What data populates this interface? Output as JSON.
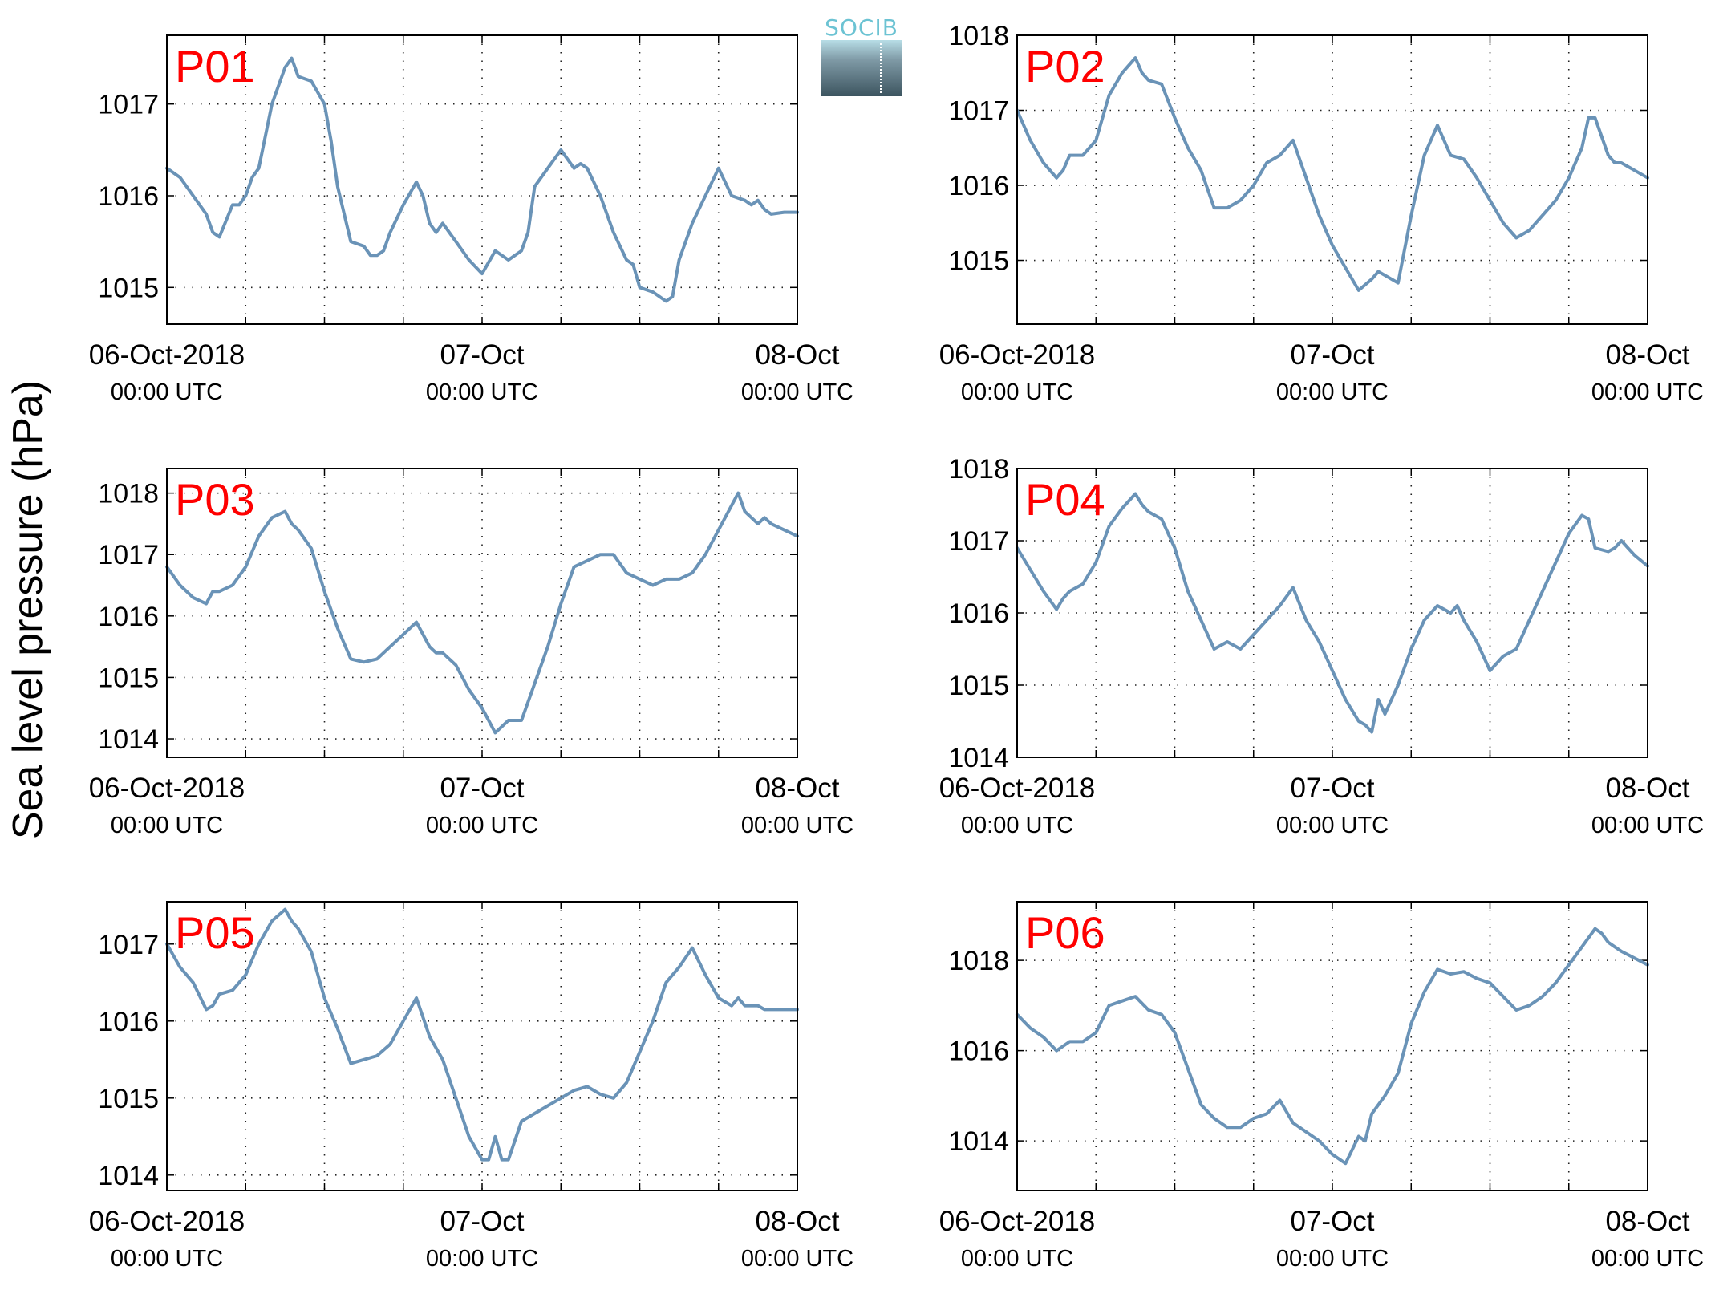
{
  "figure": {
    "ylabel": "Sea level pressure (hPa)",
    "logo": {
      "text": "SOCIB"
    },
    "line_color": "#6a93b7",
    "label_color": "#ff0000"
  },
  "chart_data": [
    {
      "type": "line",
      "name": "P01",
      "x_ticks": [
        "06-Oct-2018",
        "07-Oct",
        "08-Oct"
      ],
      "x_tick_sublabels": [
        "00:00 UTC",
        "00:00 UTC",
        "00:00 UTC"
      ],
      "xlim_hours": [
        0,
        48
      ],
      "ylim": [
        1014.6,
        1017.75
      ],
      "yticks": [
        1015,
        1016,
        1017
      ],
      "grid": true,
      "x_hours": [
        0,
        1,
        2,
        3,
        3.5,
        4,
        5,
        5.5,
        6,
        6.5,
        7,
        8,
        9,
        9.5,
        10,
        11,
        12,
        12.5,
        13,
        14,
        15,
        15.5,
        16,
        16.5,
        17,
        18,
        19,
        19.5,
        20,
        20.5,
        21,
        22,
        23,
        24,
        25,
        26,
        27,
        27.5,
        28,
        29,
        30,
        31,
        31.5,
        32,
        33,
        34,
        35,
        35.5,
        36,
        37,
        38,
        38.5,
        39,
        40,
        41,
        42,
        43,
        44,
        44.5,
        45,
        45.5,
        46,
        47,
        48
      ],
      "values": [
        1016.3,
        1016.2,
        1016.0,
        1015.8,
        1015.6,
        1015.55,
        1015.9,
        1015.9,
        1016.0,
        1016.2,
        1016.3,
        1017.0,
        1017.4,
        1017.5,
        1017.3,
        1017.25,
        1017.0,
        1016.6,
        1016.1,
        1015.5,
        1015.45,
        1015.35,
        1015.35,
        1015.4,
        1015.6,
        1015.9,
        1016.15,
        1016.0,
        1015.7,
        1015.6,
        1015.7,
        1015.5,
        1015.3,
        1015.15,
        1015.4,
        1015.3,
        1015.4,
        1015.6,
        1016.1,
        1016.3,
        1016.5,
        1016.3,
        1016.35,
        1016.3,
        1016.0,
        1015.6,
        1015.3,
        1015.25,
        1015.0,
        1014.95,
        1014.85,
        1014.9,
        1015.3,
        1015.7,
        1016.0,
        1016.3,
        1016.0,
        1015.95,
        1015.9,
        1015.95,
        1015.85,
        1015.8,
        1015.82,
        1015.82
      ]
    },
    {
      "type": "line",
      "name": "P02",
      "x_ticks": [
        "06-Oct-2018",
        "07-Oct",
        "08-Oct"
      ],
      "x_tick_sublabels": [
        "00:00 UTC",
        "00:00 UTC",
        "00:00 UTC"
      ],
      "xlim_hours": [
        0,
        48
      ],
      "ylim": [
        1014.15,
        1018.0
      ],
      "yticks": [
        1015,
        1016,
        1017,
        1018
      ],
      "grid": true,
      "x_hours": [
        0,
        1,
        2,
        3,
        3.5,
        4,
        5,
        6,
        7,
        8,
        9,
        9.5,
        10,
        11,
        12,
        13,
        14,
        15,
        15.5,
        16,
        17,
        18,
        19,
        20,
        21,
        22,
        23,
        24,
        25,
        26,
        27,
        27.5,
        28,
        29,
        30,
        31,
        32,
        33,
        34,
        35,
        36,
        37,
        38,
        39,
        40,
        41,
        42,
        43,
        43.5,
        44,
        45,
        45.5,
        46,
        47,
        48
      ],
      "values": [
        1017.0,
        1016.6,
        1016.3,
        1016.1,
        1016.2,
        1016.4,
        1016.4,
        1016.6,
        1017.2,
        1017.5,
        1017.7,
        1017.5,
        1017.4,
        1017.35,
        1016.9,
        1016.5,
        1016.2,
        1015.7,
        1015.7,
        1015.7,
        1015.8,
        1016.0,
        1016.3,
        1016.4,
        1016.6,
        1016.1,
        1015.6,
        1015.2,
        1014.9,
        1014.6,
        1014.75,
        1014.85,
        1014.8,
        1014.7,
        1015.6,
        1016.4,
        1016.8,
        1016.4,
        1016.35,
        1016.1,
        1015.8,
        1015.5,
        1015.3,
        1015.4,
        1015.6,
        1015.8,
        1016.1,
        1016.5,
        1016.9,
        1016.9,
        1016.4,
        1016.3,
        1016.3,
        1016.2,
        1016.1
      ]
    },
    {
      "type": "line",
      "name": "P03",
      "x_ticks": [
        "06-Oct-2018",
        "07-Oct",
        "08-Oct"
      ],
      "x_tick_sublabels": [
        "00:00 UTC",
        "00:00 UTC",
        "00:00 UTC"
      ],
      "xlim_hours": [
        0,
        48
      ],
      "ylim": [
        1013.7,
        1018.4
      ],
      "yticks": [
        1014,
        1015,
        1016,
        1017,
        1018
      ],
      "grid": true,
      "x_hours": [
        0,
        1,
        2,
        3,
        3.5,
        4,
        5,
        6,
        7,
        8,
        9,
        9.5,
        10,
        11,
        12,
        13,
        14,
        15,
        16,
        17,
        18,
        19,
        20,
        20.5,
        21,
        22,
        23,
        24,
        25,
        26,
        27,
        28,
        29,
        30,
        31,
        32,
        33,
        34,
        35,
        36,
        37,
        38,
        39,
        40,
        41,
        42,
        43,
        43.5,
        44,
        45,
        45.5,
        46,
        47,
        48
      ],
      "values": [
        1016.8,
        1016.5,
        1016.3,
        1016.2,
        1016.4,
        1016.4,
        1016.5,
        1016.8,
        1017.3,
        1017.6,
        1017.7,
        1017.5,
        1017.4,
        1017.1,
        1016.4,
        1015.8,
        1015.3,
        1015.25,
        1015.3,
        1015.5,
        1015.7,
        1015.9,
        1015.5,
        1015.4,
        1015.4,
        1015.2,
        1014.8,
        1014.5,
        1014.1,
        1014.3,
        1014.3,
        1014.9,
        1015.5,
        1016.2,
        1016.8,
        1016.9,
        1017.0,
        1017.0,
        1016.7,
        1016.6,
        1016.5,
        1016.6,
        1016.6,
        1016.7,
        1017.0,
        1017.4,
        1017.8,
        1018.0,
        1017.7,
        1017.5,
        1017.6,
        1017.5,
        1017.4,
        1017.3
      ]
    },
    {
      "type": "line",
      "name": "P04",
      "x_ticks": [
        "06-Oct-2018",
        "07-Oct",
        "08-Oct"
      ],
      "x_tick_sublabels": [
        "00:00 UTC",
        "00:00 UTC",
        "00:00 UTC"
      ],
      "xlim_hours": [
        0,
        48
      ],
      "ylim": [
        1014.0,
        1018.0
      ],
      "yticks": [
        1014,
        1015,
        1016,
        1017,
        1018
      ],
      "grid": true,
      "x_hours": [
        0,
        1,
        2,
        3,
        3.5,
        4,
        5,
        6,
        7,
        8,
        9,
        9.5,
        10,
        11,
        12,
        13,
        14,
        15,
        16,
        17,
        18,
        19,
        20,
        21,
        22,
        23,
        24,
        25,
        26,
        26.5,
        27,
        27.5,
        28,
        29,
        30,
        31,
        32,
        33,
        33.5,
        34,
        35,
        36,
        37,
        38,
        39,
        40,
        41,
        42,
        43,
        43.5,
        44,
        45,
        45.5,
        46,
        47,
        48
      ],
      "values": [
        1016.9,
        1016.6,
        1016.3,
        1016.05,
        1016.2,
        1016.3,
        1016.4,
        1016.7,
        1017.2,
        1017.45,
        1017.65,
        1017.5,
        1017.4,
        1017.3,
        1016.9,
        1016.3,
        1015.9,
        1015.5,
        1015.6,
        1015.5,
        1015.7,
        1015.9,
        1016.1,
        1016.35,
        1015.9,
        1015.6,
        1015.2,
        1014.8,
        1014.5,
        1014.45,
        1014.35,
        1014.8,
        1014.6,
        1015.0,
        1015.5,
        1015.9,
        1016.1,
        1016.0,
        1016.1,
        1015.9,
        1015.6,
        1015.2,
        1015.4,
        1015.5,
        1015.9,
        1016.3,
        1016.7,
        1017.1,
        1017.35,
        1017.3,
        1016.9,
        1016.85,
        1016.9,
        1017.0,
        1016.8,
        1016.65
      ]
    },
    {
      "type": "line",
      "name": "P05",
      "x_ticks": [
        "06-Oct-2018",
        "07-Oct",
        "08-Oct"
      ],
      "x_tick_sublabels": [
        "00:00 UTC",
        "00:00 UTC",
        "00:00 UTC"
      ],
      "xlim_hours": [
        0,
        48
      ],
      "ylim": [
        1013.8,
        1017.55
      ],
      "yticks": [
        1014,
        1015,
        1016,
        1017
      ],
      "grid": true,
      "x_hours": [
        0,
        1,
        2,
        3,
        3.5,
        4,
        5,
        6,
        7,
        8,
        9,
        9.5,
        10,
        11,
        12,
        13,
        14,
        15,
        16,
        17,
        18,
        19,
        20,
        21,
        22,
        23,
        24,
        24.5,
        25,
        25.5,
        26,
        27,
        28,
        29,
        30,
        31,
        32,
        33,
        34,
        35,
        36,
        37,
        38,
        39,
        40,
        41,
        42,
        43,
        43.5,
        44,
        45,
        45.5,
        46,
        47,
        48
      ],
      "values": [
        1017.0,
        1016.7,
        1016.5,
        1016.15,
        1016.2,
        1016.35,
        1016.4,
        1016.6,
        1017.0,
        1017.3,
        1017.45,
        1017.3,
        1017.2,
        1016.9,
        1016.3,
        1015.9,
        1015.45,
        1015.5,
        1015.55,
        1015.7,
        1016.0,
        1016.3,
        1015.8,
        1015.5,
        1015.0,
        1014.5,
        1014.2,
        1014.2,
        1014.5,
        1014.2,
        1014.2,
        1014.7,
        1014.8,
        1014.9,
        1015.0,
        1015.1,
        1015.15,
        1015.05,
        1015.0,
        1015.2,
        1015.6,
        1016.0,
        1016.5,
        1016.7,
        1016.95,
        1016.6,
        1016.3,
        1016.2,
        1016.3,
        1016.2,
        1016.2,
        1016.15,
        1016.15,
        1016.15,
        1016.15
      ]
    },
    {
      "type": "line",
      "name": "P06",
      "x_ticks": [
        "06-Oct-2018",
        "07-Oct",
        "08-Oct"
      ],
      "x_tick_sublabels": [
        "00:00 UTC",
        "00:00 UTC",
        "00:00 UTC"
      ],
      "xlim_hours": [
        0,
        48
      ],
      "ylim": [
        1012.9,
        1019.3
      ],
      "yticks": [
        1014,
        1016,
        1018
      ],
      "grid": true,
      "x_hours": [
        0,
        1,
        2,
        3,
        4,
        5,
        6,
        7,
        8,
        9,
        10,
        11,
        12,
        13,
        14,
        15,
        16,
        17,
        18,
        19,
        20,
        21,
        22,
        23,
        24,
        25,
        26,
        26.5,
        27,
        28,
        29,
        30,
        31,
        32,
        33,
        34,
        35,
        36,
        37,
        38,
        39,
        40,
        41,
        42,
        43,
        44,
        44.5,
        45,
        45.5,
        46,
        47,
        48
      ],
      "values": [
        1016.8,
        1016.5,
        1016.3,
        1016.0,
        1016.2,
        1016.2,
        1016.4,
        1017.0,
        1017.1,
        1017.2,
        1016.9,
        1016.8,
        1016.4,
        1015.6,
        1014.8,
        1014.5,
        1014.3,
        1014.3,
        1014.5,
        1014.6,
        1014.9,
        1014.4,
        1014.2,
        1014.0,
        1013.7,
        1013.5,
        1014.1,
        1014.0,
        1014.6,
        1015.0,
        1015.5,
        1016.6,
        1017.3,
        1017.8,
        1017.7,
        1017.75,
        1017.6,
        1017.5,
        1017.2,
        1016.9,
        1017.0,
        1017.2,
        1017.5,
        1017.9,
        1018.3,
        1018.7,
        1018.6,
        1018.4,
        1018.3,
        1018.2,
        1018.05,
        1017.9
      ]
    }
  ]
}
